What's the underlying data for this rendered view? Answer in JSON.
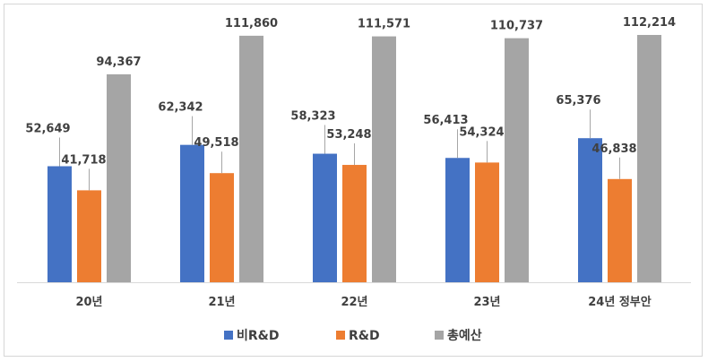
{
  "chart_data": {
    "type": "bar",
    "categories": [
      "20년",
      "21년",
      "22년",
      "23년",
      "24년 정부안"
    ],
    "series": [
      {
        "name": "비R&D",
        "color": "#4472c4",
        "values": [
          52649,
          62342,
          58323,
          56413,
          65376
        ],
        "labels": [
          "52,649",
          "62,342",
          "58,323",
          "56,413",
          "65,376"
        ]
      },
      {
        "name": "R&D",
        "color": "#ed7d31",
        "values": [
          41718,
          49518,
          53248,
          54324,
          46838
        ],
        "labels": [
          "41,718",
          "49,518",
          "53,248",
          "54,324",
          "46,838"
        ]
      },
      {
        "name": "총예산",
        "color": "#a5a5a5",
        "values": [
          94367,
          111860,
          111571,
          110737,
          112214
        ],
        "labels": [
          "94,367",
          "111,860",
          "111,571",
          "110,737",
          "112,214"
        ]
      }
    ],
    "ylim": [
      0,
      112214
    ],
    "grid": false,
    "legend": "bottom-center",
    "title": "",
    "xlabel": "",
    "ylabel": ""
  }
}
